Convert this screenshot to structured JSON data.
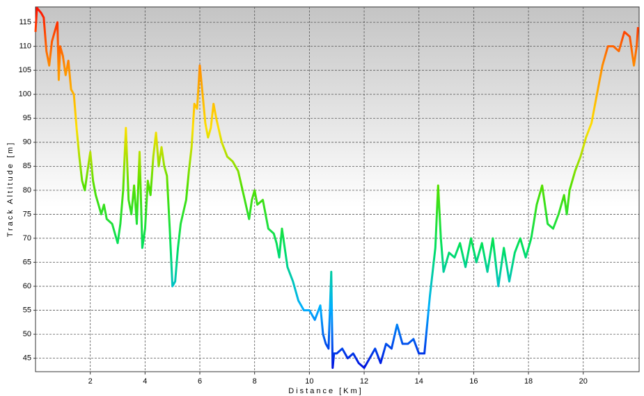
{
  "chart_data": {
    "type": "line",
    "x_label": "Distance [Km]",
    "y_label": "Track Altitude [m]",
    "x": [
      0,
      0.05,
      0.2,
      0.3,
      0.4,
      0.5,
      0.6,
      0.7,
      0.8,
      0.85,
      0.9,
      1.0,
      1.1,
      1.2,
      1.3,
      1.4,
      1.5,
      1.6,
      1.7,
      1.8,
      1.9,
      2.0,
      2.1,
      2.2,
      2.3,
      2.4,
      2.5,
      2.6,
      2.8,
      3.0,
      3.1,
      3.2,
      3.3,
      3.4,
      3.5,
      3.6,
      3.7,
      3.8,
      3.9,
      4.0,
      4.1,
      4.2,
      4.3,
      4.4,
      4.5,
      4.6,
      4.7,
      4.8,
      4.9,
      5.0,
      5.1,
      5.2,
      5.3,
      5.5,
      5.6,
      5.7,
      5.8,
      5.9,
      6.0,
      6.1,
      6.2,
      6.3,
      6.4,
      6.5,
      6.6,
      6.8,
      7.0,
      7.2,
      7.4,
      7.6,
      7.8,
      7.9,
      8.0,
      8.1,
      8.3,
      8.5,
      8.7,
      8.8,
      8.9,
      9.0,
      9.2,
      9.4,
      9.6,
      9.8,
      10.0,
      10.2,
      10.4,
      10.5,
      10.6,
      10.7,
      10.8,
      10.85,
      10.9,
      11.0,
      11.2,
      11.4,
      11.6,
      11.8,
      12.0,
      12.2,
      12.4,
      12.6,
      12.8,
      13.0,
      13.2,
      13.4,
      13.6,
      13.8,
      14.0,
      14.2,
      14.4,
      14.6,
      14.7,
      14.8,
      14.9,
      15.1,
      15.3,
      15.5,
      15.7,
      15.9,
      16.1,
      16.3,
      16.5,
      16.7,
      16.9,
      17.1,
      17.3,
      17.5,
      17.7,
      17.9,
      18.1,
      18.3,
      18.5,
      18.7,
      18.9,
      19.1,
      19.3,
      19.4,
      19.5,
      19.7,
      19.9,
      20.1,
      20.3,
      20.5,
      20.7,
      20.9,
      21.1,
      21.3,
      21.5,
      21.7,
      21.85,
      21.95,
      22.0
    ],
    "values": [
      113,
      118,
      117,
      116,
      109,
      106,
      111,
      113,
      115,
      103,
      110,
      108,
      104,
      107,
      101,
      100,
      93,
      87,
      82,
      80,
      84,
      88,
      82,
      79,
      77,
      75,
      77,
      74,
      73,
      69,
      73,
      80,
      93,
      78,
      75,
      81,
      73,
      88,
      68,
      72,
      82,
      79,
      87,
      92,
      85,
      89,
      85,
      83,
      72,
      60,
      61,
      68,
      73,
      78,
      84,
      89,
      98,
      97,
      106,
      100,
      94,
      91,
      93,
      98,
      95,
      90,
      87,
      86,
      84,
      79,
      74,
      78,
      80,
      77,
      78,
      72,
      71,
      69,
      66,
      72,
      64,
      61,
      57,
      55,
      55,
      53,
      56,
      50,
      48,
      47,
      63,
      43,
      46,
      46,
      47,
      45,
      46,
      44,
      43,
      45,
      47,
      44,
      48,
      47,
      52,
      48,
      48,
      49,
      46,
      46,
      58,
      68,
      81,
      70,
      63,
      67,
      66,
      69,
      64,
      70,
      65,
      69,
      63,
      70,
      60,
      68,
      61,
      67,
      70,
      66,
      70,
      77,
      81,
      73,
      72,
      75,
      79,
      75,
      80,
      84,
      87,
      91,
      94,
      100,
      106,
      110,
      110,
      109,
      113,
      112,
      106,
      110,
      114
    ],
    "colors": [
      "#0010e0",
      "#00b0ff",
      "#00e060",
      "#50e000",
      "#ffe000",
      "#ff9000",
      "#ff1000"
    ],
    "xlim": [
      0,
      22.04
    ],
    "ylim": [
      42.2,
      118.2
    ],
    "xticks": [
      2,
      4,
      6,
      8,
      10,
      12,
      14,
      16,
      18,
      20
    ],
    "yticks": [
      45,
      50,
      55,
      60,
      65,
      70,
      75,
      80,
      85,
      90,
      95,
      100,
      105,
      110,
      115
    ],
    "grid": true
  }
}
